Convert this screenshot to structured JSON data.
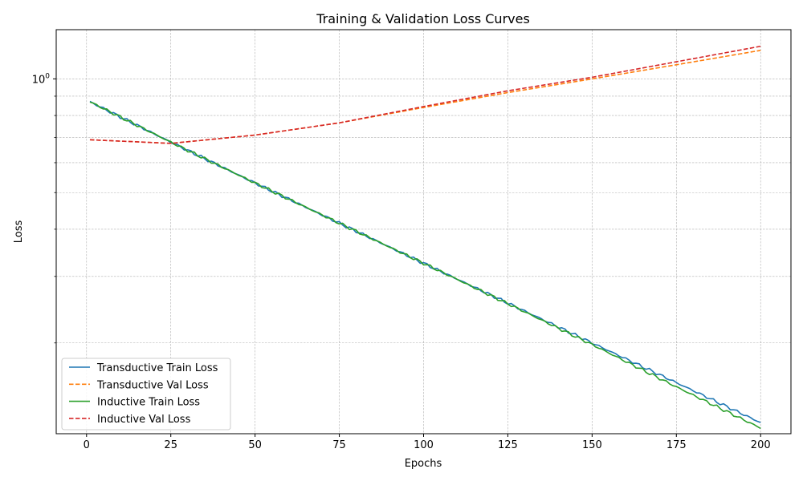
{
  "chart_data": {
    "type": "line",
    "title": "Training & Validation Loss Curves",
    "xlabel": "Epochs",
    "ylabel": "Loss",
    "yscale": "log",
    "xlim": [
      -9,
      209
    ],
    "ylim": [
      0.115,
      1.35
    ],
    "xticks": [
      0,
      25,
      50,
      75,
      100,
      125,
      150,
      175,
      200
    ],
    "yticks": [
      {
        "value": 1.0,
        "label": "10",
        "exponent": "0"
      }
    ],
    "y_minor_ticks": [
      0.2,
      0.3,
      0.4,
      0.5,
      0.6,
      0.7,
      0.8,
      0.9
    ],
    "grid": true,
    "legend_position": "lower-left",
    "series": [
      {
        "name": "Transductive Train Loss",
        "color": "#1f77b4",
        "dash": "solid",
        "x": [
          1,
          25,
          50,
          75,
          100,
          125,
          150,
          175,
          200
        ],
        "y": [
          0.87,
          0.68,
          0.53,
          0.415,
          0.325,
          0.255,
          0.2,
          0.157,
          0.123
        ]
      },
      {
        "name": "Transductive Val Loss",
        "color": "#ff7f0e",
        "dash": "dashed",
        "x": [
          1,
          25,
          50,
          75,
          100,
          125,
          150,
          175,
          200
        ],
        "y": [
          0.69,
          0.675,
          0.71,
          0.765,
          0.84,
          0.92,
          1.0,
          1.09,
          1.19
        ]
      },
      {
        "name": "Inductive Train Loss",
        "color": "#2ca02c",
        "dash": "solid",
        "x": [
          1,
          25,
          50,
          75,
          100,
          125,
          150,
          175,
          200
        ],
        "y": [
          0.87,
          0.68,
          0.53,
          0.415,
          0.325,
          0.254,
          0.198,
          0.153,
          0.119
        ]
      },
      {
        "name": "Inductive Val Loss",
        "color": "#d62728",
        "dash": "dashed",
        "x": [
          1,
          25,
          50,
          75,
          100,
          125,
          150,
          175,
          200
        ],
        "y": [
          0.69,
          0.675,
          0.71,
          0.765,
          0.845,
          0.93,
          1.01,
          1.11,
          1.22
        ]
      }
    ]
  }
}
